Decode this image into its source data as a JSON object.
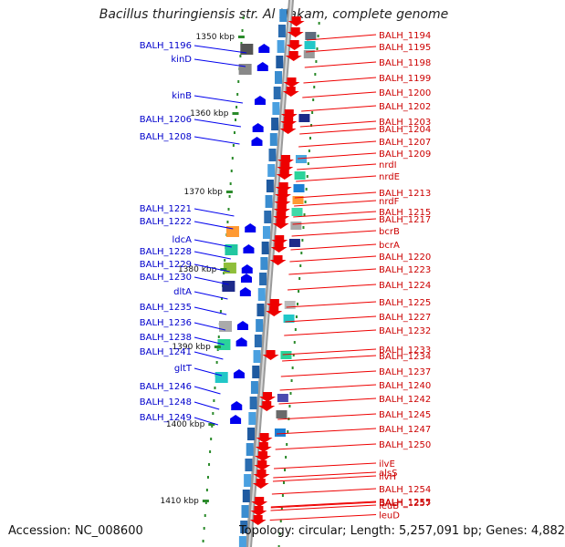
{
  "title": "Bacillus thuringiensis str. Al Hakam, complete genome",
  "footer": {
    "accession": "Accession: NC_008600",
    "topology": "Topology: circular; Length: 5,257,091 bp; Genes: 4,882"
  },
  "kbp_labels": [
    "1350 kbp",
    "1360 kbp",
    "1370 kbp",
    "1380 kbp",
    "1390 kbp",
    "1400 kbp",
    "1410 kbp"
  ],
  "left_genes": [
    "BALH_1196",
    "kinD",
    "kinB",
    "BALH_1206",
    "BALH_1208",
    "BALH_1221",
    "BALH_1222",
    "ldcA",
    "BALH_1228",
    "BALH_1229",
    "BALH_1230",
    "dltA",
    "BALH_1235",
    "BALH_1236",
    "BALH_1238",
    "BALH_1241",
    "gltT",
    "BALH_1246",
    "BALH_1248",
    "BALH_1249"
  ],
  "right_genes": [
    "BALH_1194",
    "BALH_1195",
    "BALH_1198",
    "BALH_1199",
    "BALH_1200",
    "BALH_1202",
    "BALH_1203",
    "BALH_1204",
    "BALH_1207",
    "BALH_1209",
    "nrdI",
    "nrdE",
    "BALH_1213",
    "nrdF",
    "BALH_1215",
    "BALH_1217",
    "bcrB",
    "bcrA",
    "BALH_1220",
    "BALH_1223",
    "BALH_1224",
    "BALH_1225",
    "BALH_1227",
    "BALH_1232",
    "BALH_1233",
    "BALH_1234",
    "BALH_1237",
    "BALH_1240",
    "BALH_1242",
    "BALH_1245",
    "BALH_1247",
    "BALH_1250",
    "ilvE",
    "alsS",
    "ilvH",
    "BALH_1254",
    "BALH_1255",
    "leuB",
    "BALH_1257",
    "leuD"
  ],
  "colors": {
    "forward": "#0000ee",
    "reverse": "#ee0000",
    "backbone": "#888888",
    "tick": "#2a8a2a"
  }
}
